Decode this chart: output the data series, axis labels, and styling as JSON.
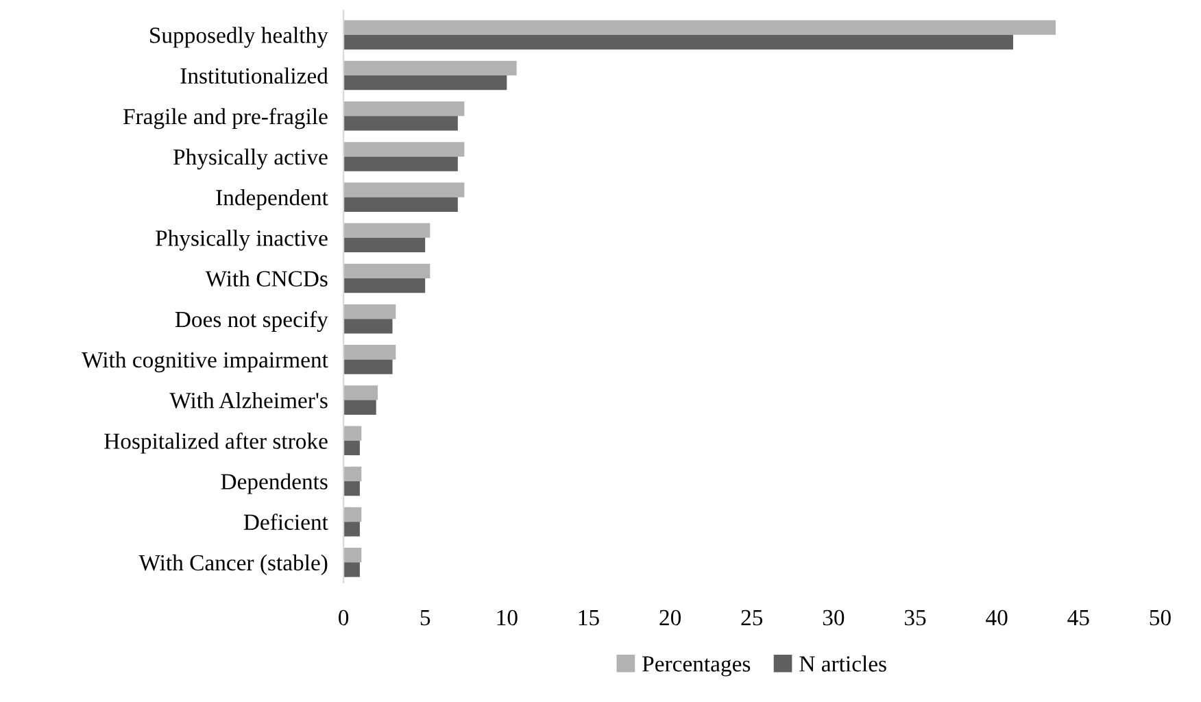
{
  "chart_data": {
    "type": "bar",
    "orientation": "horizontal",
    "categories": [
      "Supposedly healthy",
      "Institutionalized",
      "Fragile and pre-fragile",
      "Physically active",
      "Independent",
      "Physically inactive",
      "With CNCDs",
      "Does not specify",
      "With cognitive impairment",
      "With Alzheimer's",
      "Hospitalized after stroke",
      "Dependents",
      "Deficient",
      "With Cancer (stable)"
    ],
    "series": [
      {
        "name": "Percentages",
        "color": "#b2b2b2",
        "values": [
          43.6,
          10.6,
          7.4,
          7.4,
          7.4,
          5.3,
          5.3,
          3.2,
          3.2,
          2.1,
          1.1,
          1.1,
          1.1,
          1.1
        ]
      },
      {
        "name": "N articles",
        "color": "#5f5f5f",
        "values": [
          41,
          10,
          7,
          7,
          7,
          5,
          5,
          3,
          3,
          2,
          1,
          1,
          1,
          1
        ]
      }
    ],
    "xlim": [
      0,
      50
    ],
    "xticks": [
      0,
      5,
      10,
      15,
      20,
      25,
      30,
      35,
      40,
      45,
      50
    ],
    "grid": false,
    "legend": "bottom"
  }
}
